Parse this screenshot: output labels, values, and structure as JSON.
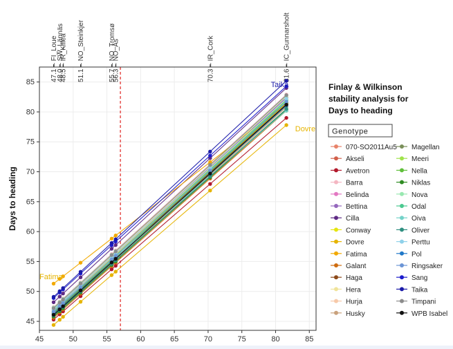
{
  "chart_data": {
    "type": "line",
    "title": "Finlay & Wilkinson\nstability analysis for\nDays to heading",
    "xlabel": "",
    "ylabel": "Days to heading",
    "xlim": [
      45,
      86
    ],
    "ylim": [
      43.5,
      87.5
    ],
    "x_ticks": [
      "45",
      "50",
      "55",
      "60",
      "65",
      "70",
      "75",
      "80",
      "85"
    ],
    "y_ticks": [
      45,
      50,
      55,
      60,
      65,
      70,
      75,
      80,
      85
    ],
    "grid": true,
    "legend_title": "Genotype",
    "legend_position": "right",
    "env_mean_reference_line": 57,
    "environments": [
      {
        "name": "FI_Loue",
        "x": 47.1
      },
      {
        "name": "SW_Lännäs",
        "x": 48.0
      },
      {
        "name": "IR_Killea",
        "x": 48.5
      },
      {
        "name": "NO_Steinkjer",
        "x": 51.1
      },
      {
        "name": "NO_Tromsø",
        "x": 55.7
      },
      {
        "name": "NO_Ås",
        "x": 56.3
      },
      {
        "name": "IR_Cork",
        "x": 70.3
      },
      {
        "name": "IC_Gunnarsholt",
        "x": 81.6
      }
    ],
    "env_value_labels": [
      "47.1",
      "48.0",
      "48.5",
      "51.1",
      "55.7",
      "56.3",
      "70.3",
      "81.6"
    ],
    "annotations": [
      {
        "text": "Taika",
        "x": 79.3,
        "y": 84.6,
        "color": "#1a1aa8"
      },
      {
        "text": "Dovre",
        "x": 82.9,
        "y": 77.2,
        "color": "#e6b400"
      },
      {
        "text": "Fatima",
        "x": 45.0,
        "y": 52.5,
        "color": "#e6b400"
      }
    ],
    "series": [
      {
        "name": "070-SO2011Au5",
        "color": "#e8836a",
        "x": [
          47.1,
          81.6
        ],
        "y": [
          46.6,
          82.4
        ]
      },
      {
        "name": "Akseli",
        "color": "#d2604b",
        "x": [
          47.1,
          81.6
        ],
        "y": [
          46.0,
          81.3
        ]
      },
      {
        "name": "Avetron",
        "color": "#b2182b",
        "x": [
          47.1,
          81.6
        ],
        "y": [
          45.3,
          79.0
        ]
      },
      {
        "name": "Barra",
        "color": "#f4b6c2",
        "x": [
          47.1,
          81.6
        ],
        "y": [
          47.4,
          82.9
        ]
      },
      {
        "name": "Belinda",
        "color": "#e377c2",
        "x": [
          47.1,
          81.6
        ],
        "y": [
          46.2,
          81.4
        ]
      },
      {
        "name": "Bettina",
        "color": "#9467bd",
        "x": [
          47.1,
          81.6
        ],
        "y": [
          46.9,
          82.4
        ]
      },
      {
        "name": "Cilla",
        "color": "#5e2a84",
        "x": [
          47.1,
          81.6
        ],
        "y": [
          48.2,
          84.0
        ]
      },
      {
        "name": "Conway",
        "color": "#e5e510",
        "x": [
          47.1,
          81.6
        ],
        "y": [
          46.3,
          81.5
        ]
      },
      {
        "name": "Dovre",
        "color": "#e6b400",
        "x": [
          47.1,
          81.6
        ],
        "y": [
          44.4,
          77.8
        ]
      },
      {
        "name": "Fatima",
        "color": "#f2a900",
        "x": [
          47.1,
          81.6
        ],
        "y": [
          51.3,
          81.5
        ]
      },
      {
        "name": "Galant",
        "color": "#cf6c0f",
        "x": [
          47.1,
          81.6
        ],
        "y": [
          45.6,
          80.2
        ]
      },
      {
        "name": "Haga",
        "color": "#8c4a1a",
        "x": [
          47.1,
          81.6
        ],
        "y": [
          46.4,
          81.3
        ]
      },
      {
        "name": "Hera",
        "color": "#f0e39a",
        "x": [
          47.1,
          81.6
        ],
        "y": [
          47.1,
          82.6
        ]
      },
      {
        "name": "Hurja",
        "color": "#f7c9a9",
        "x": [
          47.1,
          81.6
        ],
        "y": [
          46.8,
          82.1
        ]
      },
      {
        "name": "Husky",
        "color": "#c9a17c",
        "x": [
          47.1,
          81.6
        ],
        "y": [
          45.9,
          80.8
        ]
      },
      {
        "name": "Magellan",
        "color": "#7a8f5a",
        "x": [
          47.1,
          81.6
        ],
        "y": [
          46.1,
          81.0
        ]
      },
      {
        "name": "Meeri",
        "color": "#9fe34b",
        "x": [
          47.1,
          81.6
        ],
        "y": [
          46.7,
          82.0
        ]
      },
      {
        "name": "Nella",
        "color": "#5fbf3a",
        "x": [
          47.1,
          81.6
        ],
        "y": [
          46.3,
          81.6
        ]
      },
      {
        "name": "Niklas",
        "color": "#2e8b22",
        "x": [
          47.1,
          81.6
        ],
        "y": [
          45.8,
          80.4
        ]
      },
      {
        "name": "Nova",
        "color": "#98e8b0",
        "x": [
          47.1,
          81.6
        ],
        "y": [
          47.3,
          82.7
        ]
      },
      {
        "name": "Odal",
        "color": "#49c98f",
        "x": [
          47.1,
          81.6
        ],
        "y": [
          46.5,
          81.9
        ]
      },
      {
        "name": "Oiva",
        "color": "#73d2c8",
        "x": [
          47.1,
          81.6
        ],
        "y": [
          46.9,
          80.2
        ]
      },
      {
        "name": "Oliver",
        "color": "#2f8f80",
        "x": [
          47.1,
          81.6
        ],
        "y": [
          46.0,
          80.5
        ]
      },
      {
        "name": "Perttu",
        "color": "#8fd1ea",
        "x": [
          47.1,
          81.6
        ],
        "y": [
          47.0,
          82.2
        ]
      },
      {
        "name": "Pol",
        "color": "#1f78c8",
        "x": [
          47.1,
          81.6
        ],
        "y": [
          46.2,
          81.1
        ]
      },
      {
        "name": "Ringsaker",
        "color": "#6b95d6",
        "x": [
          47.1,
          81.6
        ],
        "y": [
          46.6,
          81.7
        ]
      },
      {
        "name": "Sang",
        "color": "#1c1ccc",
        "x": [
          47.1,
          81.6
        ],
        "y": [
          48.9,
          84.3
        ]
      },
      {
        "name": "Taika",
        "color": "#1a1aa8",
        "x": [
          47.1,
          81.6
        ],
        "y": [
          49.1,
          85.2
        ]
      },
      {
        "name": "Timpani",
        "color": "#8c8c8c",
        "x": [
          47.1,
          81.6
        ],
        "y": [
          47.2,
          82.8
        ]
      },
      {
        "name": "WPB Isabel",
        "color": "#111111",
        "x": [
          47.1,
          81.6
        ],
        "y": [
          46.1,
          81.2
        ]
      }
    ]
  }
}
